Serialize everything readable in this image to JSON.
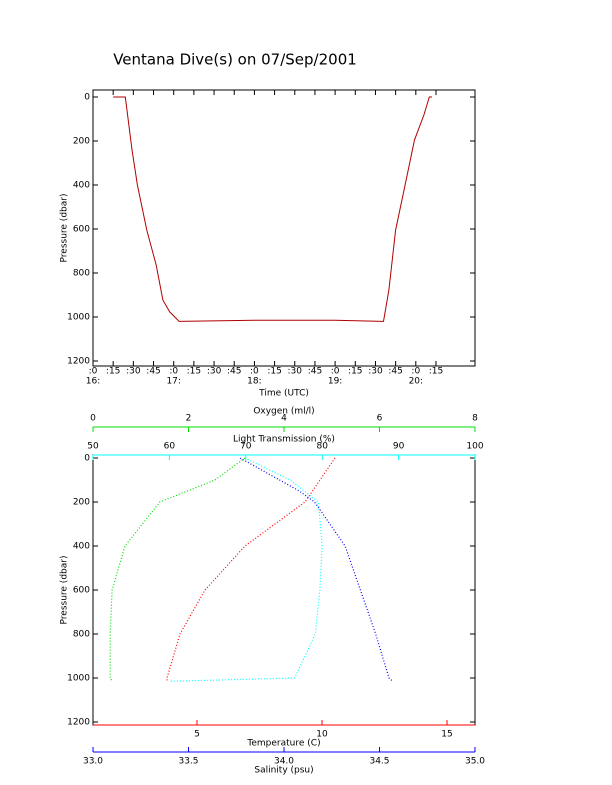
{
  "chart_data": [
    {
      "type": "line",
      "title": "Ventana Dive(s) on 07/Sep/2001",
      "xlabel": "Time (UTC)",
      "ylabel": "Pressure (dbar)",
      "color": "#b00000",
      "y_inverted": true,
      "xlim": [
        "16:00",
        "20:44"
      ],
      "xticks": [
        {
          "value": "16:00",
          "label": ":0"
        },
        {
          "value": "16:15",
          "label": ":15"
        },
        {
          "value": "16:30",
          "label": ":30"
        },
        {
          "value": "16:45",
          "label": ":45"
        },
        {
          "value": "17:00",
          "label": ":0"
        },
        {
          "value": "17:15",
          "label": ":15"
        },
        {
          "value": "17:30",
          "label": ":30"
        },
        {
          "value": "17:45",
          "label": ":45"
        },
        {
          "value": "18:00",
          "label": ":0"
        },
        {
          "value": "18:15",
          "label": ":15"
        },
        {
          "value": "18:30",
          "label": ":30"
        },
        {
          "value": "18:45",
          "label": ":45"
        },
        {
          "value": "19:00",
          "label": ":0"
        },
        {
          "value": "19:15",
          "label": ":15"
        },
        {
          "value": "19:30",
          "label": ":30"
        },
        {
          "value": "19:45",
          "label": ":45"
        },
        {
          "value": "20:00",
          "label": ":0"
        },
        {
          "value": "20:15",
          "label": ":15"
        }
      ],
      "hour_labels": [
        {
          "value": "16:00",
          "label": "16:"
        },
        {
          "value": "17:00",
          "label": "17:"
        },
        {
          "value": "18:00",
          "label": "18:"
        },
        {
          "value": "19:00",
          "label": "19:"
        },
        {
          "value": "20:00",
          "label": "20:"
        }
      ],
      "ylim": [
        0,
        1200
      ],
      "yticks": [
        0,
        200,
        400,
        600,
        800,
        1000,
        1200
      ],
      "x": [
        "16:15",
        "16:22",
        "16:24",
        "16:29",
        "16:33",
        "16:40",
        "16:47",
        "16:52",
        "16:57",
        "17:04",
        "18:00",
        "19:00",
        "19:36",
        "19:40",
        "19:45",
        "19:52",
        "19:59",
        "20:06",
        "20:10",
        "20:12"
      ],
      "values": [
        0,
        0,
        0,
        240,
        400,
        605,
        764,
        923,
        977,
        1020,
        1015,
        1015,
        1020,
        877,
        605,
        400,
        195,
        82,
        0,
        0
      ]
    },
    {
      "type": "profile",
      "ylabel": "Pressure (dbar)",
      "y_inverted": true,
      "ylim": [
        0,
        1200
      ],
      "yticks": [
        0,
        200,
        400,
        600,
        800,
        1000,
        1200
      ],
      "series": [
        {
          "label": "Temperature (C)",
          "color": "#ff0000",
          "position": "bottom",
          "xlim": [
            0.84,
            16.12
          ],
          "xticks": [
            5,
            10,
            15
          ],
          "x": [
            10.52,
            9.32,
            6.92,
            5.32,
            4.32,
            3.8,
            3.8
          ],
          "values": [
            0,
            200,
            400,
            600,
            800,
            1000,
            1015
          ]
        },
        {
          "label": "Salinity (psu)",
          "color": "#0000ff",
          "position": "bottom2",
          "xlim": [
            33,
            35
          ],
          "xticks": [
            {
              "value": 33,
              "label": "33.0"
            },
            {
              "value": 33.5,
              "label": "33.5"
            },
            {
              "value": 34,
              "label": "34.0"
            },
            {
              "value": 34.5,
              "label": "34.5"
            },
            {
              "value": 35,
              "label": "35.0"
            }
          ],
          "x": [
            33.77,
            34.08,
            34.16,
            34.32,
            34.4,
            34.48,
            34.55,
            34.57
          ],
          "values": [
            0,
            150,
            200,
            400,
            600,
            800,
            1000,
            1015
          ]
        },
        {
          "label": "Oxygen (ml/l)",
          "color": "#00dd00",
          "position": "top2",
          "xlim": [
            0,
            8
          ],
          "xticks": [
            0,
            2,
            4,
            6,
            8
          ],
          "x": [
            3.18,
            2.55,
            1.4,
            0.67,
            0.4,
            0.36,
            0.36,
            0.4
          ],
          "values": [
            0,
            100,
            200,
            400,
            600,
            800,
            1000,
            1015
          ]
        },
        {
          "label": "Light Transmission (%)",
          "color": "#00ffff",
          "position": "top",
          "xlim": [
            50,
            100
          ],
          "xticks": [
            50,
            60,
            70,
            80,
            90,
            100
          ],
          "x": [
            69.9,
            75.8,
            79.5,
            80,
            79.7,
            79.1,
            76.4,
            60.1
          ],
          "values": [
            0,
            100,
            200,
            400,
            600,
            800,
            1000,
            1015
          ]
        }
      ]
    }
  ]
}
